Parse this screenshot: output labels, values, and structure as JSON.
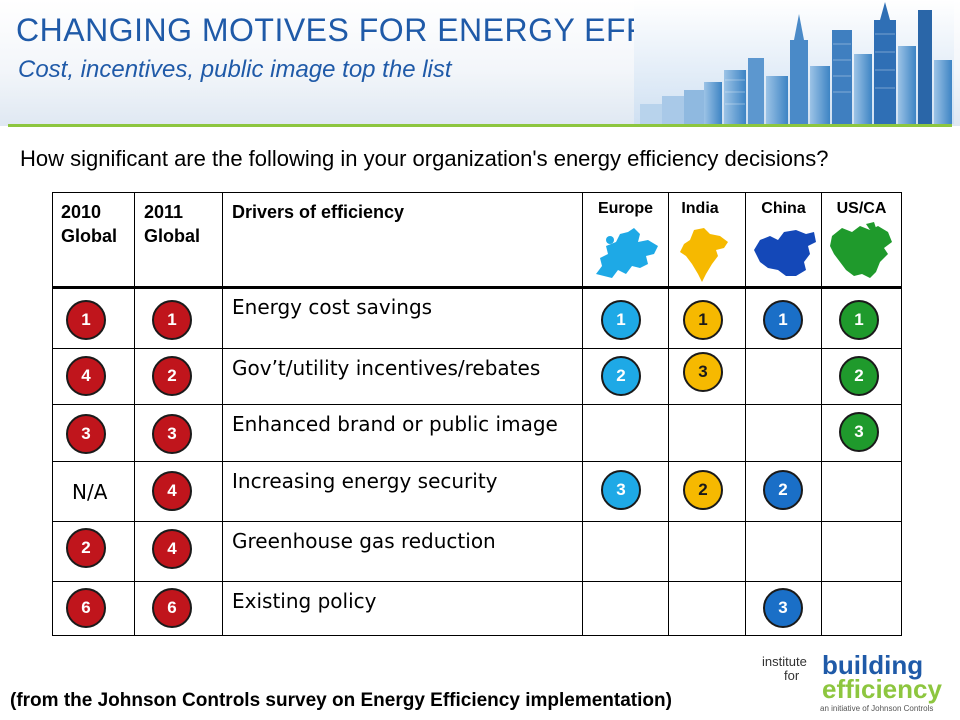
{
  "header": {
    "title": "CHANGING MOTIVES FOR ENERGY EFFICIENCY",
    "subtitle": "Cost, incentives, public image top the list"
  },
  "question": "How significant are the following in your organization's energy efficiency decisions?",
  "table": {
    "col_2010": "2010 Global",
    "col_2011": "2011 Global",
    "col_drivers": "Drivers of efficiency",
    "regions": [
      "Europe",
      "India",
      "China",
      "US/CA"
    ],
    "rows": [
      {
        "driver": "Energy cost savings",
        "g2010": "1",
        "g2011": "1",
        "europe": "1",
        "india": "1",
        "china": "1",
        "usca": "1"
      },
      {
        "driver": "Gov’t/utility incentives/rebates",
        "g2010": "4",
        "g2011": "2",
        "europe": "2",
        "india": "3",
        "china": "",
        "usca": "2"
      },
      {
        "driver": "Enhanced brand or public image",
        "g2010": "3",
        "g2011": "3",
        "europe": "",
        "india": "",
        "china": "",
        "usca": "3"
      },
      {
        "driver": "Increasing energy security",
        "g2010": "N/A",
        "g2011": "4",
        "europe": "3",
        "india": "2",
        "china": "2",
        "usca": ""
      },
      {
        "driver": "Greenhouse gas reduction",
        "g2010": "2",
        "g2011": "4",
        "europe": "",
        "india": "",
        "china": "",
        "usca": ""
      },
      {
        "driver": "Existing policy",
        "g2010": "6",
        "g2011": "6",
        "europe": "",
        "india": "",
        "china": "3",
        "usca": ""
      }
    ]
  },
  "colors": {
    "global": "#c0151c",
    "europe": "#1ea9e6",
    "india": "#f6b900",
    "china": "#1a6fc7",
    "usca": "#1f9a2c",
    "title": "#1f5aa8",
    "rule": "#8dc63f"
  },
  "footnote": "(from the Johnson Controls survey on Energy Efficiency implementation)",
  "logo": {
    "line1": "institute",
    "line2": "for",
    "line3": "building",
    "line4": "efficiency",
    "tagline": "an initiative of Johnson Controls"
  }
}
